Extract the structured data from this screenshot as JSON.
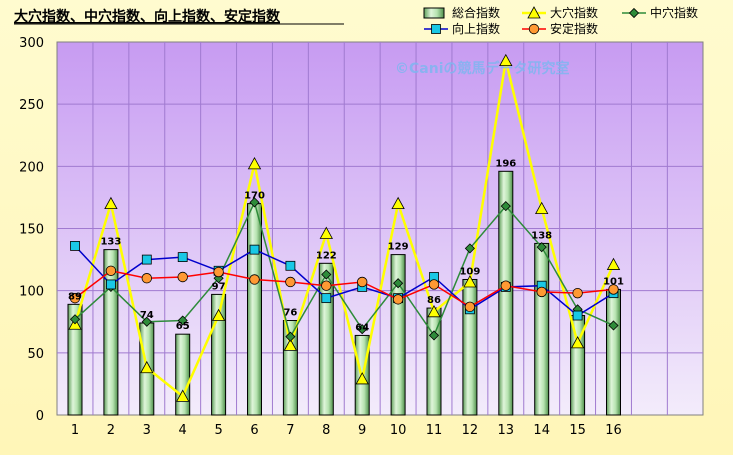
{
  "chart_data": {
    "type": "bar",
    "title": "大穴指数、中穴指数、向上指数、安定指数",
    "watermark": "©Caniの競馬データ研究室",
    "categories": [
      "1",
      "2",
      "3",
      "4",
      "5",
      "6",
      "7",
      "8",
      "9",
      "10",
      "11",
      "12",
      "13",
      "14",
      "15",
      "16"
    ],
    "ylim": [
      0,
      300
    ],
    "yticks": [
      0,
      50,
      100,
      150,
      200,
      250,
      300
    ],
    "grid": true,
    "legend_position": "top-right",
    "bar_series": {
      "name": "総合指数",
      "color": "#9fd89a",
      "values": [
        89,
        133,
        74,
        65,
        97,
        170,
        76,
        122,
        64,
        129,
        86,
        109,
        196,
        138,
        80,
        101
      ],
      "labels": [
        "89",
        "133",
        "74",
        "65",
        "97",
        "170",
        "76",
        "122",
        "64",
        "129",
        "86",
        "109",
        "196",
        "138",
        "",
        "101"
      ]
    },
    "series": [
      {
        "name": "大穴指数",
        "color": "#ffff00",
        "marker": "triangle",
        "values": [
          73,
          170,
          38,
          15,
          80,
          202,
          56,
          146,
          29,
          170,
          83,
          107,
          285,
          166,
          58,
          121
        ]
      },
      {
        "name": "中穴指数",
        "color": "#2e8b3a",
        "marker": "diamond",
        "values": [
          77,
          103,
          75,
          76,
          110,
          171,
          63,
          113,
          69,
          106,
          64,
          134,
          168,
          135,
          85,
          72
        ]
      },
      {
        "name": "向上指数",
        "color": "#0000cc",
        "marker": "square",
        "values": [
          136,
          105,
          125,
          127,
          116,
          133,
          120,
          94,
          103,
          94,
          111,
          85,
          103,
          104,
          80,
          98
        ]
      },
      {
        "name": "安定指数",
        "color": "#ff0000",
        "marker": "circle",
        "values": [
          94,
          116,
          110,
          111,
          115,
          109,
          107,
          104,
          107,
          93,
          105,
          87,
          104,
          99,
          98,
          101
        ]
      }
    ]
  }
}
